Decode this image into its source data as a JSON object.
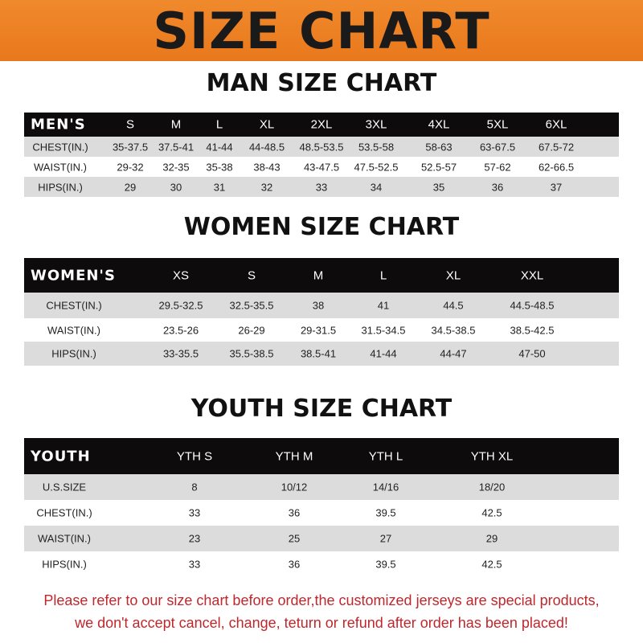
{
  "banner": {
    "title": "SIZE CHART",
    "color": "#ee8226"
  },
  "men": {
    "title": "MAN SIZE CHART",
    "header": [
      "MEN'S",
      "S",
      "M",
      "L",
      "XL",
      "2XL",
      "3XL",
      "4XL",
      "5XL",
      "6XL"
    ],
    "rows": [
      [
        "CHEST(IN.)",
        "35-37.5",
        "37.5-41",
        "41-44",
        "44-48.5",
        "48.5-53.5",
        "53.5-58",
        "58-63",
        "63-67.5",
        "67.5-72"
      ],
      [
        "WAIST(IN.)",
        "29-32",
        "32-35",
        "35-38",
        "38-43",
        "43-47.5",
        "47.5-52.5",
        "52.5-57",
        "57-62",
        "62-66.5"
      ],
      [
        "HIPS(IN.)",
        "29",
        "30",
        "31",
        "32",
        "33",
        "34",
        "35",
        "36",
        "37"
      ]
    ]
  },
  "women": {
    "title": "WOMEN SIZE CHART",
    "header": [
      "WOMEN'S",
      "XS",
      "S",
      "M",
      "L",
      "XL",
      "XXL"
    ],
    "rows": [
      [
        "CHEST(IN.)",
        "29.5-32.5",
        "32.5-35.5",
        "38",
        "41",
        "44.5",
        "44.5-48.5"
      ],
      [
        "WAIST(IN.)",
        "23.5-26",
        "26-29",
        "29-31.5",
        "31.5-34.5",
        "34.5-38.5",
        "38.5-42.5"
      ],
      [
        "HIPS(IN.)",
        "33-35.5",
        "35.5-38.5",
        "38.5-41",
        "41-44",
        "44-47",
        "47-50"
      ]
    ]
  },
  "youth": {
    "title": "YOUTH SIZE CHART",
    "header": [
      "YOUTH",
      "YTH S",
      "YTH M",
      "YTH L",
      "YTH XL"
    ],
    "rows": [
      [
        "U.S.SIZE",
        "8",
        "10/12",
        "14/16",
        "18/20"
      ],
      [
        "CHEST(IN.)",
        "33",
        "36",
        "39.5",
        "42.5"
      ],
      [
        "WAIST(IN.)",
        "23",
        "25",
        "27",
        "29"
      ],
      [
        "HIPS(IN.)",
        "33",
        "36",
        "39.5",
        "42.5"
      ]
    ]
  },
  "footer": {
    "line1": "Please refer to our size chart before order,the customized jerseys are special products,",
    "line2": "we don't accept cancel, change, teturn or refund after order has been placed!",
    "color": "#c0272d"
  }
}
